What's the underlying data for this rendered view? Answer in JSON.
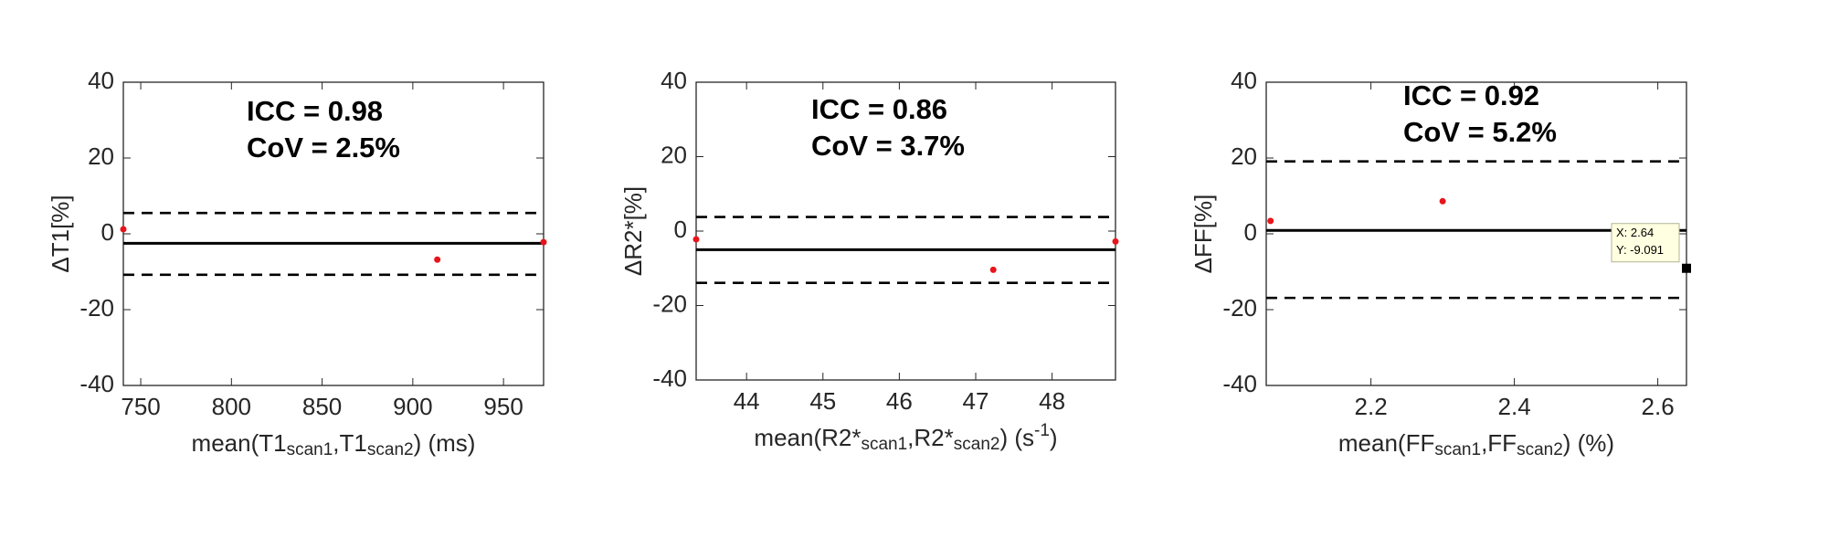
{
  "chart_data": [
    {
      "type": "scatter",
      "annotations": [
        "ICC = 0.98",
        "CoV = 2.5%"
      ],
      "xlabel": [
        {
          "text": "mean(T1"
        },
        {
          "text": "scan1",
          "shift": "sub"
        },
        {
          "text": ",T1"
        },
        {
          "text": "scan2",
          "shift": "sub"
        },
        {
          "text": ") (ms)"
        }
      ],
      "ylabel": "ΔT1[%]",
      "x": [
        740.4,
        913.5,
        972.1
      ],
      "y": [
        1.2,
        -6.8,
        -2.2
      ],
      "color": "#e8141c",
      "mean": -2.5,
      "limits_of_agreement": [
        5.5,
        -10.8
      ],
      "xlim": [
        740.4,
        972.1
      ],
      "ylim": [
        -40,
        40
      ],
      "xticks": [
        750,
        800,
        850,
        900,
        950
      ],
      "yticks": [
        -40,
        -20,
        0,
        20,
        40
      ]
    },
    {
      "type": "scatter",
      "annotations": [
        "ICC = 0.86",
        "CoV = 3.7%"
      ],
      "xlabel": [
        {
          "text": "mean(R2*"
        },
        {
          "text": "scan1",
          "shift": "sub"
        },
        {
          "text": ",R2*"
        },
        {
          "text": "scan2",
          "shift": "sub"
        },
        {
          "text": ") (s"
        },
        {
          "text": "-1",
          "shift": "super"
        },
        {
          "text": ")"
        }
      ],
      "ylabel": "ΔR2*[%]",
      "x": [
        43.34,
        47.23,
        48.83
      ],
      "y": [
        -2.2,
        -10.4,
        -2.8
      ],
      "color": "#e8141c",
      "mean": -5.0,
      "limits_of_agreement": [
        3.8,
        -13.9
      ],
      "xlim": [
        43.34,
        48.83
      ],
      "ylim": [
        -40,
        40
      ],
      "xticks": [
        44,
        45,
        46,
        47,
        48
      ],
      "yticks": [
        -40,
        -20,
        0,
        20,
        40
      ]
    },
    {
      "type": "scatter",
      "annotations": [
        "ICC = 0.92",
        "CoV = 5.2%"
      ],
      "xlabel": [
        {
          "text": "mean(FF"
        },
        {
          "text": "scan1",
          "shift": "sub"
        },
        {
          "text": ",FF"
        },
        {
          "text": "scan2",
          "shift": "sub"
        },
        {
          "text": ") (%)"
        }
      ],
      "ylabel": "ΔFF[%]",
      "x": [
        2.06,
        2.3,
        2.64
      ],
      "y": [
        3.4,
        8.6,
        -9.091
      ],
      "color": "#e8141c",
      "mean": 0.9,
      "limits_of_agreement": [
        19.1,
        -16.9
      ],
      "xlim": [
        2.054,
        2.64
      ],
      "ylim": [
        -40,
        40
      ],
      "xticks": [
        2.2,
        2.4,
        2.6
      ],
      "yticks": [
        -40,
        -20,
        0,
        20,
        40
      ],
      "datatip": [
        "X: 2.64",
        "Y: -9.091"
      ]
    }
  ]
}
